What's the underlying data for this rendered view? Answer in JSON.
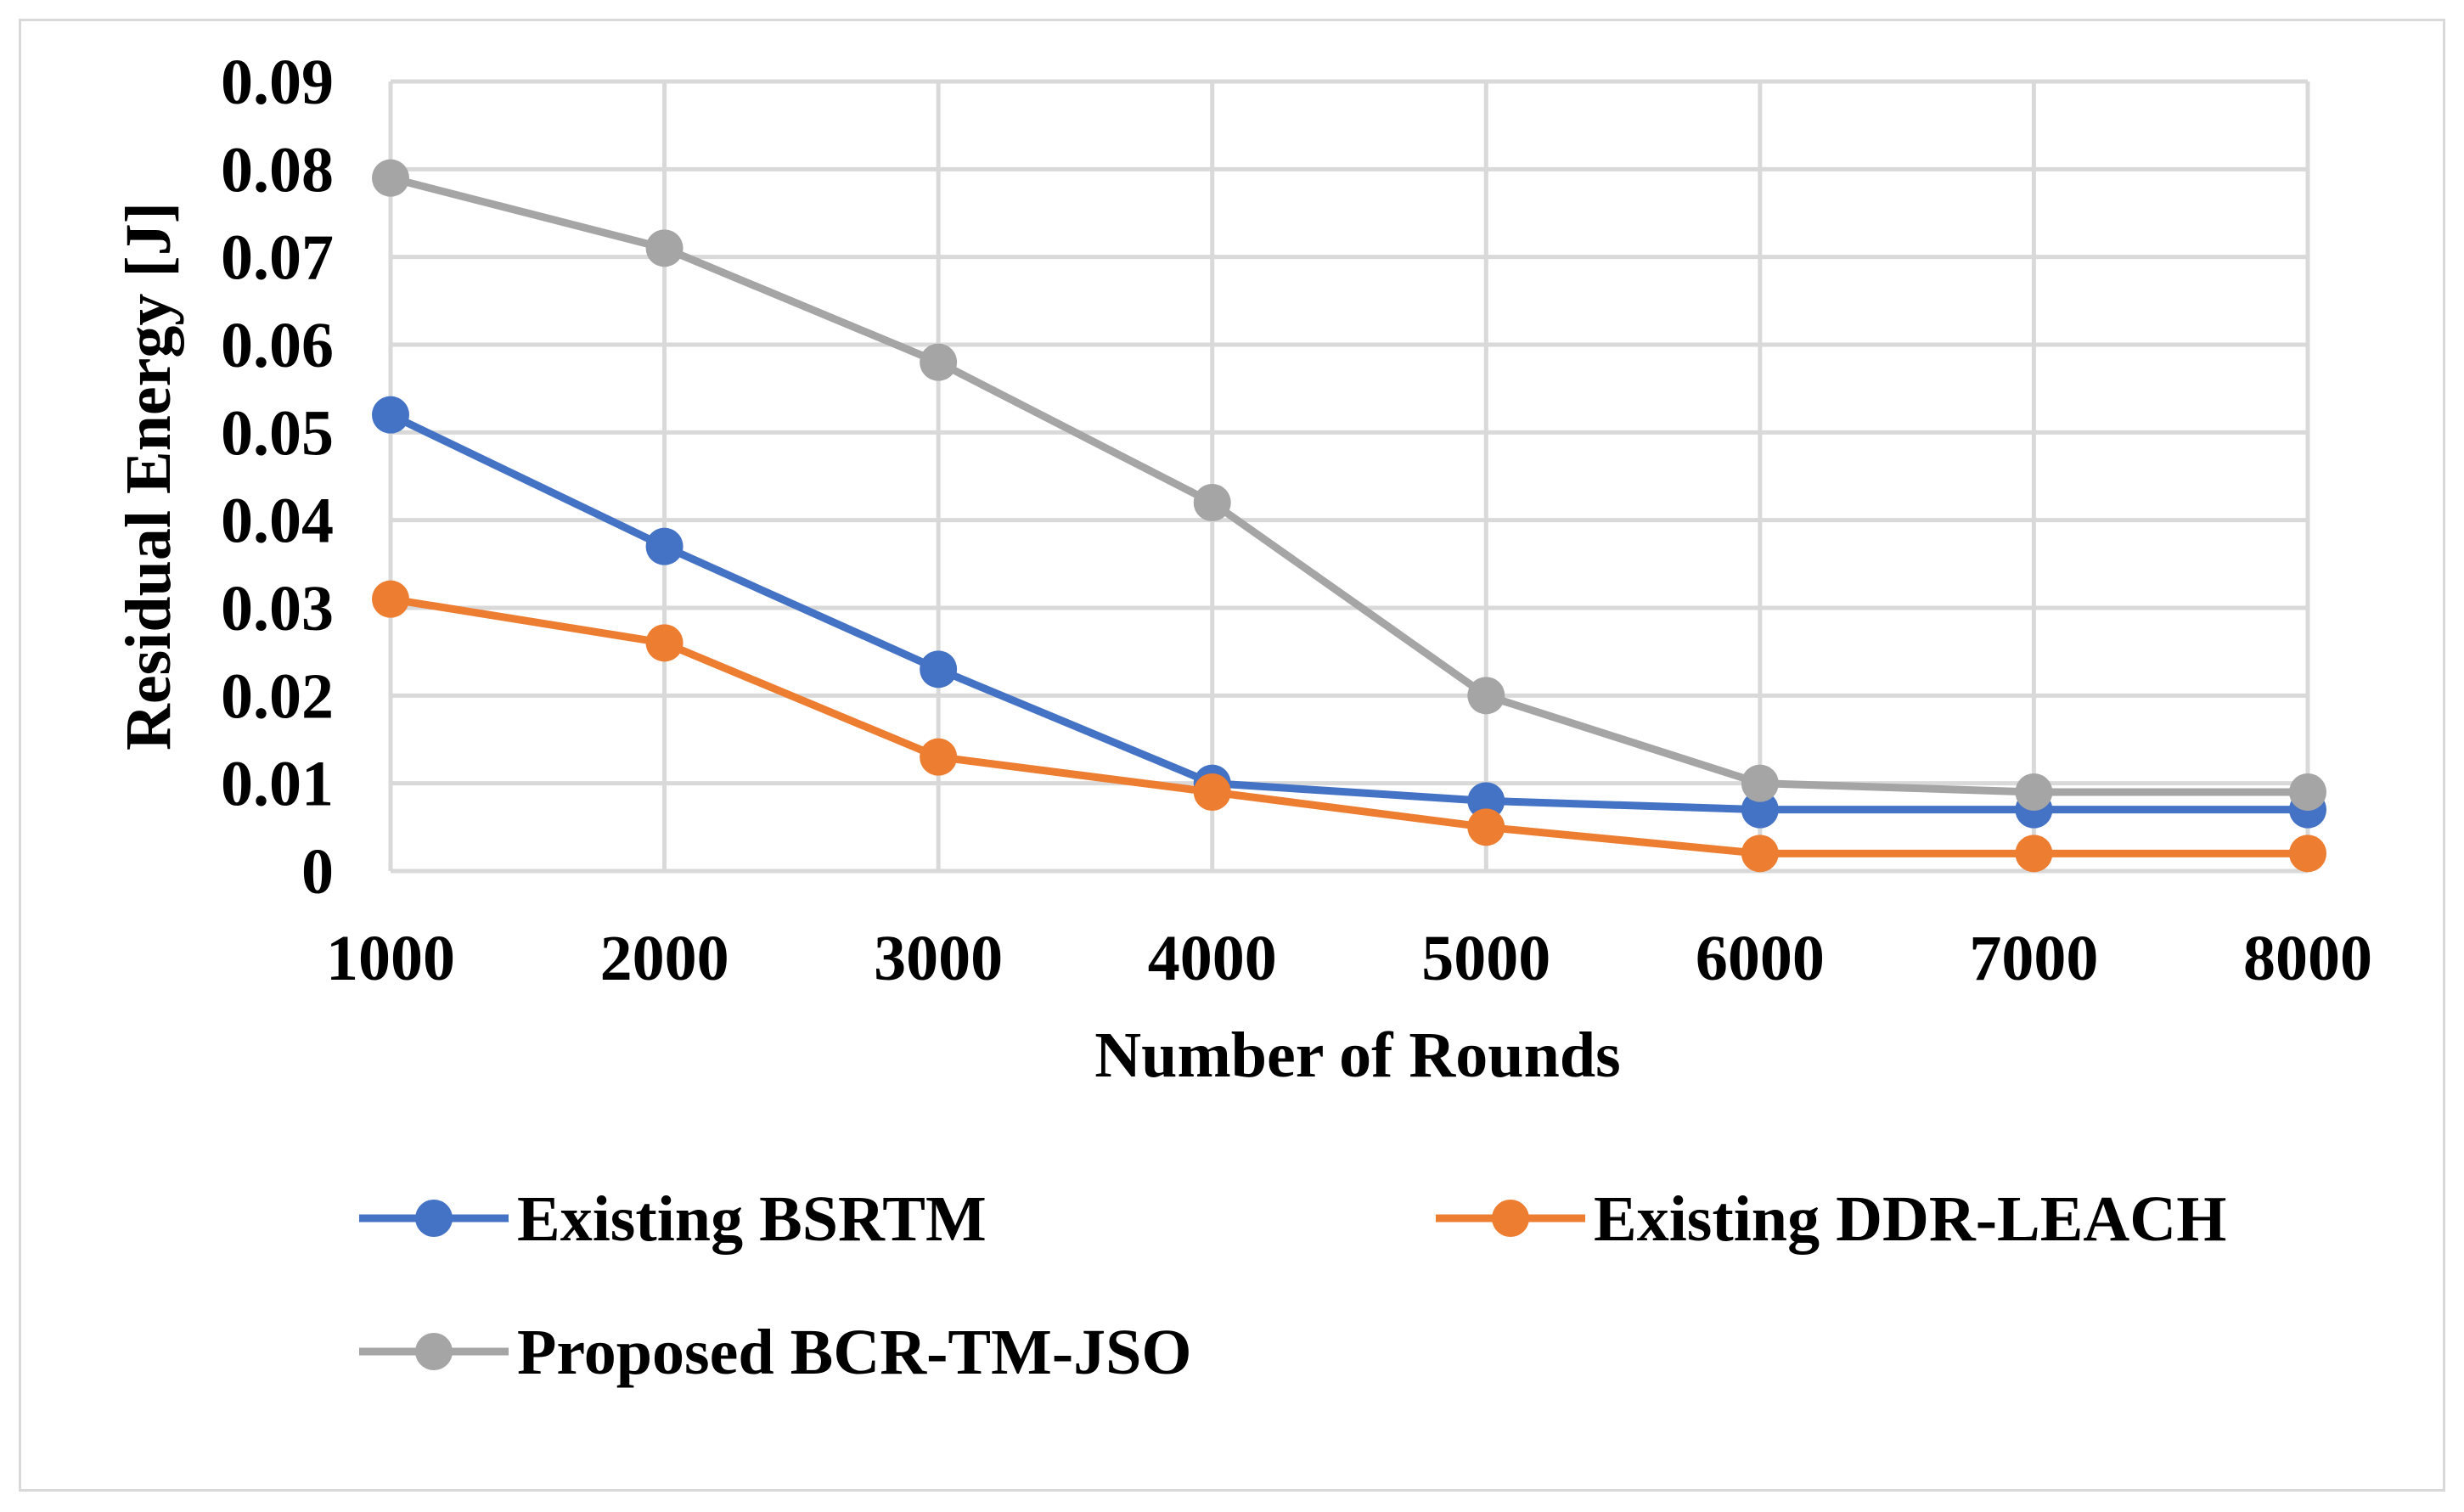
{
  "chart_data": {
    "type": "line",
    "title": "",
    "xlabel": "Number of Rounds",
    "ylabel": "Residual Energy [J]",
    "categories": [
      "1000",
      "2000",
      "3000",
      "4000",
      "5000",
      "6000",
      "7000",
      "8000"
    ],
    "y_ticks": [
      "0",
      "0.01",
      "0.02",
      "0.03",
      "0.04",
      "0.05",
      "0.06",
      "0.07",
      "0.08",
      "0.09"
    ],
    "ylim": [
      0,
      0.09
    ],
    "grid": true,
    "legend_position": "bottom",
    "series": [
      {
        "name": "Existing BSRTM",
        "color": "#4472c4",
        "values": [
          0.052,
          0.037,
          0.023,
          0.01,
          0.008,
          0.007,
          0.007,
          0.007
        ]
      },
      {
        "name": "Existing DDR-LEACH",
        "color": "#ed7d31",
        "values": [
          0.031,
          0.026,
          0.013,
          0.009,
          0.005,
          0.002,
          0.002,
          0.002
        ]
      },
      {
        "name": "Proposed BCR-TM-JSO",
        "color": "#a5a5a5",
        "values": [
          0.079,
          0.071,
          0.058,
          0.042,
          0.02,
          0.01,
          0.009,
          0.009
        ]
      }
    ]
  }
}
